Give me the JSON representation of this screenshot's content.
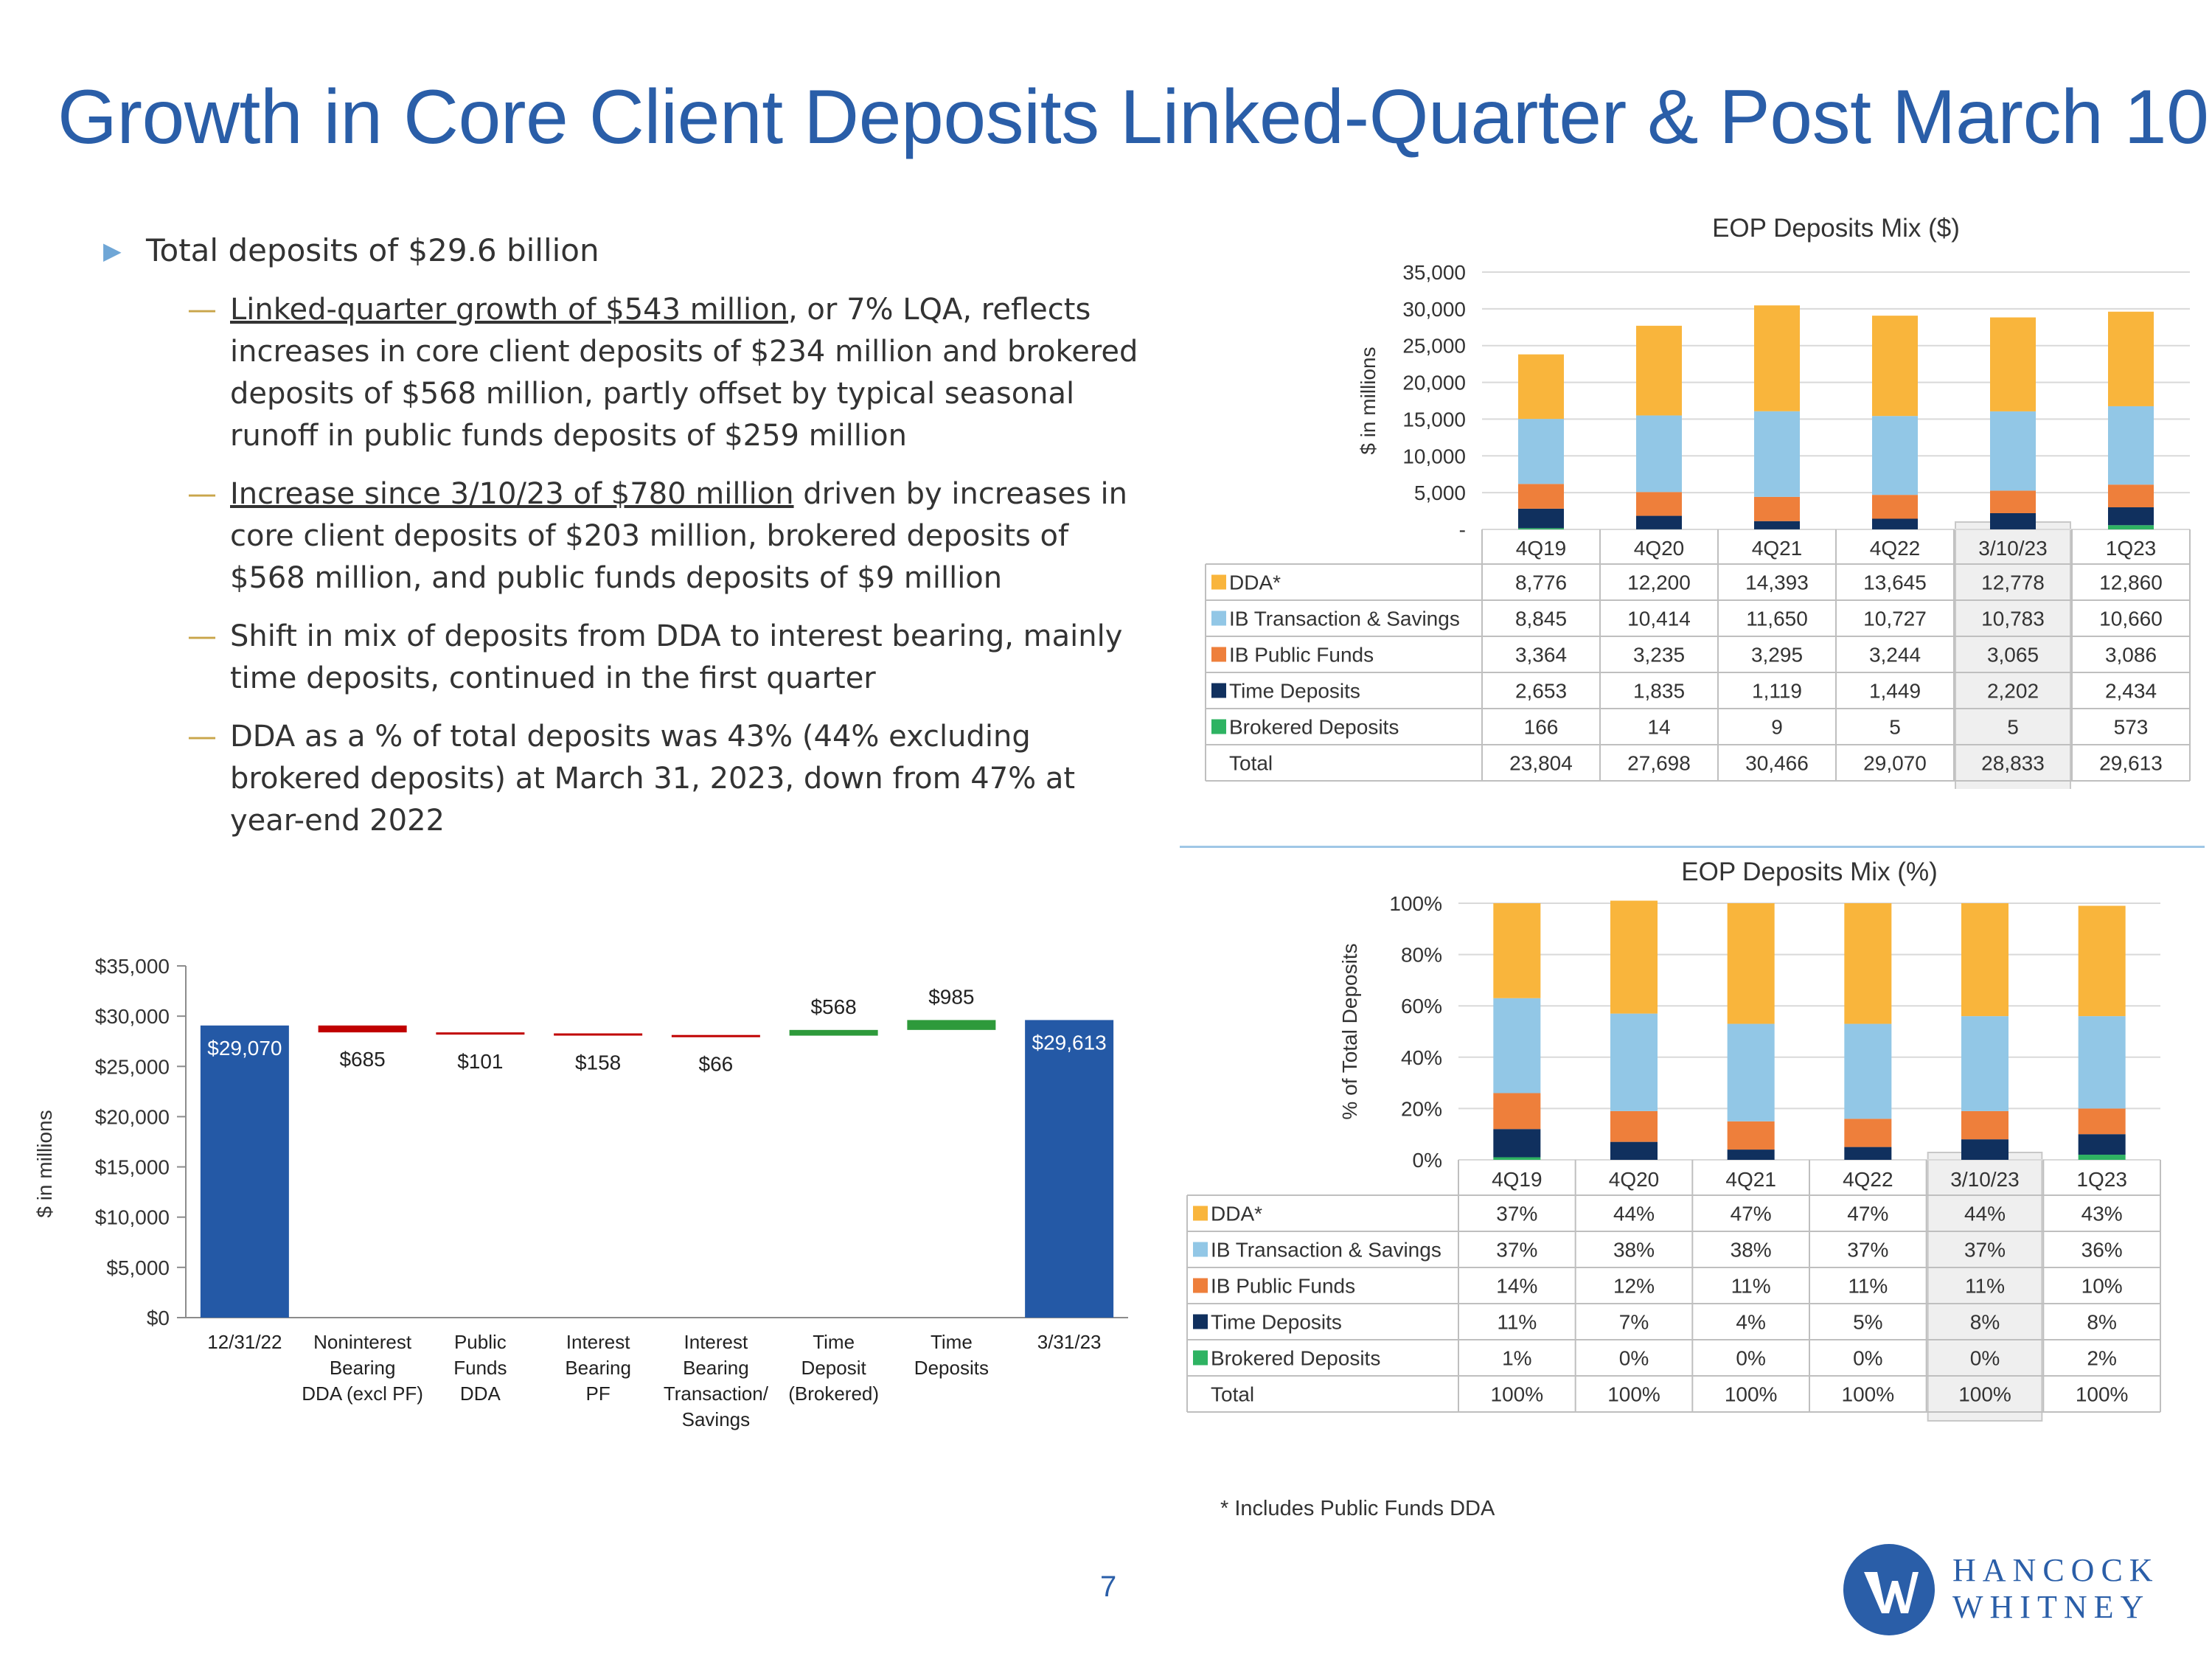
{
  "title": "Growth in Core Client Deposits Linked-Quarter & Post March 10",
  "bullets": {
    "main": "Total deposits of $29.6 billion",
    "sub": [
      {
        "underlined": "Linked-quarter growth of $543 million",
        "rest": ", or 7% LQA, reflects increases in core client deposits of $234 million and  brokered deposits of $568 million, partly offset by typical seasonal runoff in public funds deposits of $259 million"
      },
      {
        "underlined": "Increase since 3/10/23 of $780 million",
        "rest": " driven by increases in core client deposits of $203 million, brokered deposits of $568 million, and public funds deposits of $9 million"
      },
      {
        "underlined": "",
        "rest": "Shift in mix of deposits from DDA to interest bearing, mainly time deposits, continued in the first quarter"
      },
      {
        "underlined": "",
        "rest": "DDA as a % of total deposits was 43% (44% excluding brokered deposits) at March 31, 2023, down from 47% at year-end 2022"
      }
    ]
  },
  "footnote": "* Includes Public Funds DDA",
  "page_number": "7",
  "logo": {
    "line1": "HANCOCK",
    "line2": "WHITNEY"
  },
  "colors": {
    "title": "#2a5ea8",
    "dda": "#f9b53c",
    "ib_transaction": "#92c7e6",
    "ib_public": "#ee7f3b",
    "time": "#10305e",
    "brokered": "#2eb362",
    "bar_blue": "#2459a6",
    "decrease": "#c00000",
    "increase": "#2e9a3b",
    "highlight": "#efefef"
  },
  "chart_data": [
    {
      "type": "bar",
      "stacked": true,
      "title": "EOP Deposits Mix ($)",
      "ylabel": "$ in millions",
      "ylim": [
        0,
        35000
      ],
      "yticks": [
        "-",
        "5,000",
        "10,000",
        "15,000",
        "20,000",
        "25,000",
        "30,000",
        "35,000"
      ],
      "categories": [
        "4Q19",
        "4Q20",
        "4Q21",
        "4Q22",
        "3/10/23",
        "1Q23"
      ],
      "highlight_category": "3/10/23",
      "series": [
        {
          "name": "DDA*",
          "color": "#f9b53c",
          "values": [
            8776,
            12200,
            14393,
            13645,
            12778,
            12860
          ],
          "labels": [
            "8,776",
            "12,200",
            "14,393",
            "13,645",
            "12,778",
            "12,860"
          ]
        },
        {
          "name": "IB Transaction & Savings",
          "color": "#92c7e6",
          "values": [
            8845,
            10414,
            11650,
            10727,
            10783,
            10660
          ],
          "labels": [
            "8,845",
            "10,414",
            "11,650",
            "10,727",
            "10,783",
            "10,660"
          ]
        },
        {
          "name": "IB Public Funds",
          "color": "#ee7f3b",
          "values": [
            3364,
            3235,
            3295,
            3244,
            3065,
            3086
          ],
          "labels": [
            "3,364",
            "3,235",
            "3,295",
            "3,244",
            "3,065",
            "3,086"
          ]
        },
        {
          "name": "Time Deposits",
          "color": "#10305e",
          "values": [
            2653,
            1835,
            1119,
            1449,
            2202,
            2434
          ],
          "labels": [
            "2,653",
            "1,835",
            "1,119",
            "1,449",
            "2,202",
            "2,434"
          ]
        },
        {
          "name": "Brokered Deposits",
          "color": "#2eb362",
          "values": [
            166,
            14,
            9,
            5,
            5,
            573
          ],
          "labels": [
            "166",
            "14",
            "9",
            "5",
            "5",
            "573"
          ]
        }
      ],
      "total": {
        "name": "Total",
        "labels": [
          "23,804",
          "27,698",
          "30,466",
          "29,070",
          "28,833",
          "29,613"
        ]
      }
    },
    {
      "type": "bar",
      "stacked": true,
      "title": "EOP Deposits Mix (%)",
      "ylabel": "% of Total Deposits",
      "ylim": [
        0,
        100
      ],
      "yticks": [
        "0%",
        "20%",
        "40%",
        "60%",
        "80%",
        "100%"
      ],
      "categories": [
        "4Q19",
        "4Q20",
        "4Q21",
        "4Q22",
        "3/10/23",
        "1Q23"
      ],
      "highlight_category": "3/10/23",
      "series": [
        {
          "name": "DDA*",
          "color": "#f9b53c",
          "values": [
            37,
            44,
            47,
            47,
            44,
            43
          ],
          "labels": [
            "37%",
            "44%",
            "47%",
            "47%",
            "44%",
            "43%"
          ]
        },
        {
          "name": "IB Transaction & Savings",
          "color": "#92c7e6",
          "values": [
            37,
            38,
            38,
            37,
            37,
            36
          ],
          "labels": [
            "37%",
            "38%",
            "38%",
            "37%",
            "37%",
            "36%"
          ]
        },
        {
          "name": "IB Public Funds",
          "color": "#ee7f3b",
          "values": [
            14,
            12,
            11,
            11,
            11,
            10
          ],
          "labels": [
            "14%",
            "12%",
            "11%",
            "11%",
            "11%",
            "10%"
          ]
        },
        {
          "name": "Time Deposits",
          "color": "#10305e",
          "values": [
            11,
            7,
            4,
            5,
            8,
            8
          ],
          "labels": [
            "11%",
            "7%",
            "4%",
            "5%",
            "8%",
            "8%"
          ]
        },
        {
          "name": "Brokered Deposits",
          "color": "#2eb362",
          "values": [
            1,
            0,
            0,
            0,
            0,
            2
          ],
          "labels": [
            "1%",
            "0%",
            "0%",
            "0%",
            "0%",
            "2%"
          ]
        }
      ],
      "total": {
        "name": "Total",
        "labels": [
          "100%",
          "100%",
          "100%",
          "100%",
          "100%",
          "100%"
        ]
      }
    },
    {
      "type": "waterfall",
      "ylabel": "$ in millions",
      "ylim": [
        0,
        35000
      ],
      "yticks": [
        "$0",
        "$5,000",
        "$10,000",
        "$15,000",
        "$20,000",
        "$25,000",
        "$30,000",
        "$35,000"
      ],
      "steps": [
        {
          "category": [
            "12/31/22"
          ],
          "kind": "total",
          "value": 29070,
          "label": "$29,070"
        },
        {
          "category": [
            "Noninterest",
            "Bearing",
            "DDA (excl PF)"
          ],
          "kind": "decrease",
          "value": 685,
          "label": "$685"
        },
        {
          "category": [
            "Public",
            "Funds",
            "DDA"
          ],
          "kind": "decrease",
          "value": 101,
          "label": "$101"
        },
        {
          "category": [
            "Interest",
            "Bearing",
            "PF"
          ],
          "kind": "decrease",
          "value": 158,
          "label": "$158"
        },
        {
          "category": [
            "Interest",
            "Bearing",
            "Transaction/",
            "Savings"
          ],
          "kind": "decrease",
          "value": 66,
          "label": "$66"
        },
        {
          "category": [
            "Time",
            "Deposit",
            "(Brokered)"
          ],
          "kind": "increase",
          "value": 568,
          "label": "$568"
        },
        {
          "category": [
            "Time",
            "Deposits"
          ],
          "kind": "increase",
          "value": 985,
          "label": "$985"
        },
        {
          "category": [
            "3/31/23"
          ],
          "kind": "total",
          "value": 29613,
          "label": "$29,613"
        }
      ]
    }
  ]
}
